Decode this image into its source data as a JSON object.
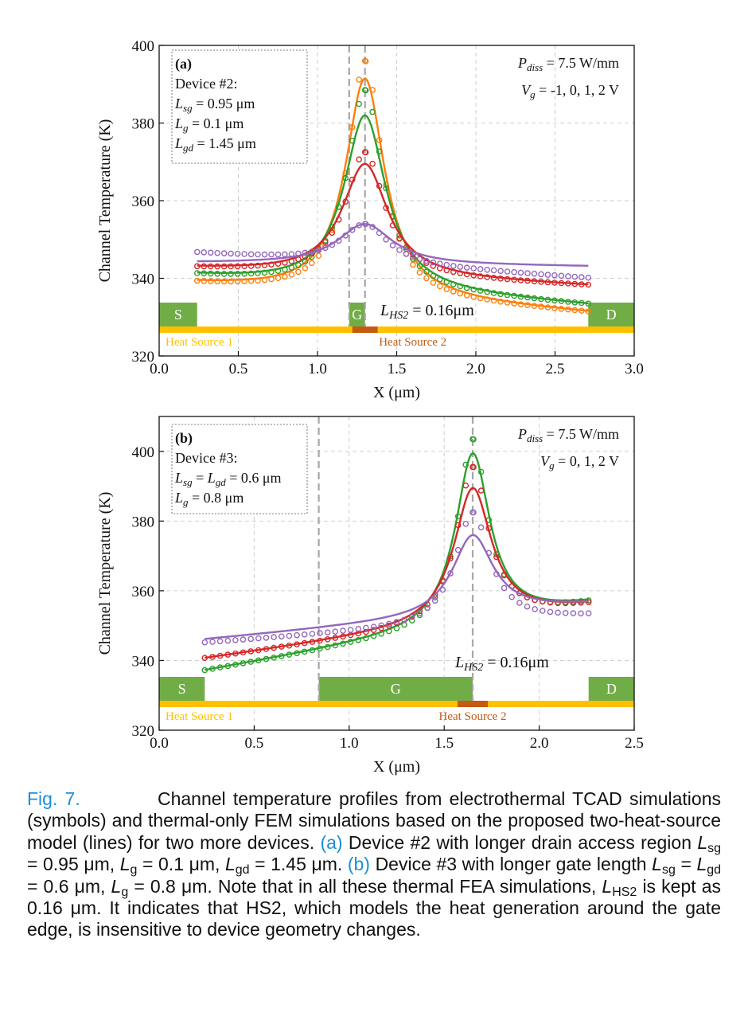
{
  "chart_data": [
    {
      "type": "line",
      "panel_label": "(a)",
      "xlabel": "X (μm)",
      "ylabel": "Channel Temperature (K)",
      "xlim": [
        0.0,
        3.0
      ],
      "ylim": [
        320,
        400
      ],
      "xticks": [
        0.0,
        0.5,
        1.0,
        1.5,
        2.0,
        2.5,
        3.0
      ],
      "xtick_labels": [
        "0.0",
        "0.5",
        "1.0",
        "1.5",
        "2.0",
        "2.5",
        "3.0"
      ],
      "yticks": [
        320,
        340,
        360,
        380,
        400
      ],
      "ytick_labels": [
        "320",
        "340",
        "360",
        "380",
        "400"
      ],
      "grid": true,
      "device": {
        "title": "Device #2:",
        "lines": [
          {
            "sym": "L",
            "sub": "sg",
            "val": " = 0.95 μm"
          },
          {
            "sym": "L",
            "sub": "g",
            "val": " = 0.1 μm"
          },
          {
            "sym": "L",
            "sub": "gd",
            "val": " = 1.45 μm"
          }
        ]
      },
      "pdiss": {
        "sym": "P",
        "sub": "diss",
        "val": " = 7.5 W/mm"
      },
      "vg": {
        "sym": "V",
        "sub": "g",
        "val": " = -1, 0, 1, 2 V"
      },
      "lhs2": {
        "sym": "L",
        "sub": "HS2",
        "val": " = 0.16μm"
      },
      "electrodes": [
        {
          "label": "S",
          "x0": 0.0,
          "x1": 0.24
        },
        {
          "label": "G",
          "x0": 1.2,
          "x1": 1.3
        },
        {
          "label": "D",
          "x0": 2.71,
          "x1": 3.0
        }
      ],
      "heat_source_1": {
        "label": "Heat Source 1",
        "x0": 0.0,
        "x1": 3.0
      },
      "heat_source_2": {
        "label": "Heat Source 2",
        "x0": 1.22,
        "x1": 1.38
      },
      "vlines": [
        1.2,
        1.3
      ],
      "series": [
        {
          "name": "Vg = -1 V",
          "color": "#ff7f0e",
          "ends": [
            338.5,
            331.0
          ],
          "peak": 391.5,
          "fem_peak": 396.0,
          "width": 0.3
        },
        {
          "name": "Vg = 0 V",
          "color": "#2ca02c",
          "ends": [
            340.5,
            333.0
          ],
          "peak": 382.0,
          "fem_peak": 388.5,
          "width": 0.32
        },
        {
          "name": "Vg = 1 V",
          "color": "#d62728",
          "ends": [
            342.5,
            338.0
          ],
          "peak": 369.5,
          "fem_peak": 372.5,
          "width": 0.35
        },
        {
          "name": "Vg = 2 V",
          "color": "#9467bd",
          "ends": [
            344.0,
            343.0
          ],
          "peak": 354.0,
          "fem_peak": 354.0,
          "width": 0.42,
          "tcad_ends": [
            346.5,
            340.0
          ]
        }
      ]
    },
    {
      "type": "line",
      "panel_label": "(b)",
      "xlabel": "X (μm)",
      "ylabel": "Channel Temperature (K)",
      "xlim": [
        0.0,
        2.5
      ],
      "ylim": [
        320,
        410
      ],
      "xticks": [
        0.0,
        0.5,
        1.0,
        1.5,
        2.0,
        2.5
      ],
      "xtick_labels": [
        "0.0",
        "0.5",
        "1.0",
        "1.5",
        "2.0",
        "2.5"
      ],
      "yticks": [
        320,
        340,
        360,
        380,
        400
      ],
      "ytick_labels": [
        "320",
        "340",
        "360",
        "380",
        "400"
      ],
      "grid": true,
      "device": {
        "title": "Device #3:",
        "lines": [
          {
            "sym": "L",
            "sub": "sg",
            "val": " = ",
            "sym2": "L",
            "sub2": "gd",
            "val2": " = 0.6 μm"
          },
          {
            "sym": "L",
            "sub": "g",
            "val": " = 0.8 μm"
          }
        ]
      },
      "pdiss": {
        "sym": "P",
        "sub": "diss",
        "val": " = 7.5 W/mm"
      },
      "vg": {
        "sym": "V",
        "sub": "g",
        "val": " = 0, 1, 2 V"
      },
      "lhs2": {
        "sym": "L",
        "sub": "HS2",
        "val": " = 0.16μm"
      },
      "electrodes": [
        {
          "label": "S",
          "x0": 0.0,
          "x1": 0.24
        },
        {
          "label": "G",
          "x0": 0.84,
          "x1": 1.65
        },
        {
          "label": "D",
          "x0": 2.26,
          "x1": 2.5
        }
      ],
      "heat_source_1": {
        "label": "Heat Source 1",
        "x0": 0.0,
        "x1": 2.5
      },
      "heat_source_2": {
        "label": "Heat Source 2",
        "x0": 1.57,
        "x1": 1.73
      },
      "vlines": [
        0.84,
        1.65
      ],
      "series": [
        {
          "name": "Vg = 0 V",
          "color": "#2ca02c",
          "ends": [
            337.0,
            356.0
          ],
          "peak": 399.5,
          "fem_peak": 403.5,
          "width": 0.22
        },
        {
          "name": "Vg = 1 V",
          "color": "#d62728",
          "ends": [
            340.5,
            355.5
          ],
          "peak": 389.5,
          "fem_peak": 395.5,
          "width": 0.24
        },
        {
          "name": "Vg = 2 V",
          "color": "#9467bd",
          "ends": [
            346.0,
            356.0
          ],
          "peak": 376.0,
          "fem_peak": 382.5,
          "width": 0.26,
          "tcad_ends": [
            345.0,
            352.5
          ]
        }
      ]
    }
  ],
  "caption": {
    "fig_label": "Fig. 7.",
    "text1": "Channel temperature profiles from electrothermal TCAD simulations (symbols) and thermal-only FEM simulations based on the proposed two-heat-source model (lines) for two more devices.",
    "ref_a": "(a)",
    "text2": "Device #2 with longer drain access region",
    "text3": "= 0.95 μm,",
    "text4": "= 0.1 μm,",
    "text5": "= 1.45 μm.",
    "ref_b": "(b)",
    "text6": "Device #3 with longer gate length",
    "text7": "=",
    "text8": "= 0.6 μm,",
    "text9": "= 0.8 μm. Note that in all these thermal FEA simulations,",
    "text10": "is kept as 0.16 μm. It indicates that HS2, which models the heat generation around the gate edge, is insensitive to device geometry changes.",
    "sym_L": "L",
    "sub_sg": "sg",
    "sub_g": "g",
    "sub_gd": "gd",
    "sub_HS2": "HS2"
  }
}
